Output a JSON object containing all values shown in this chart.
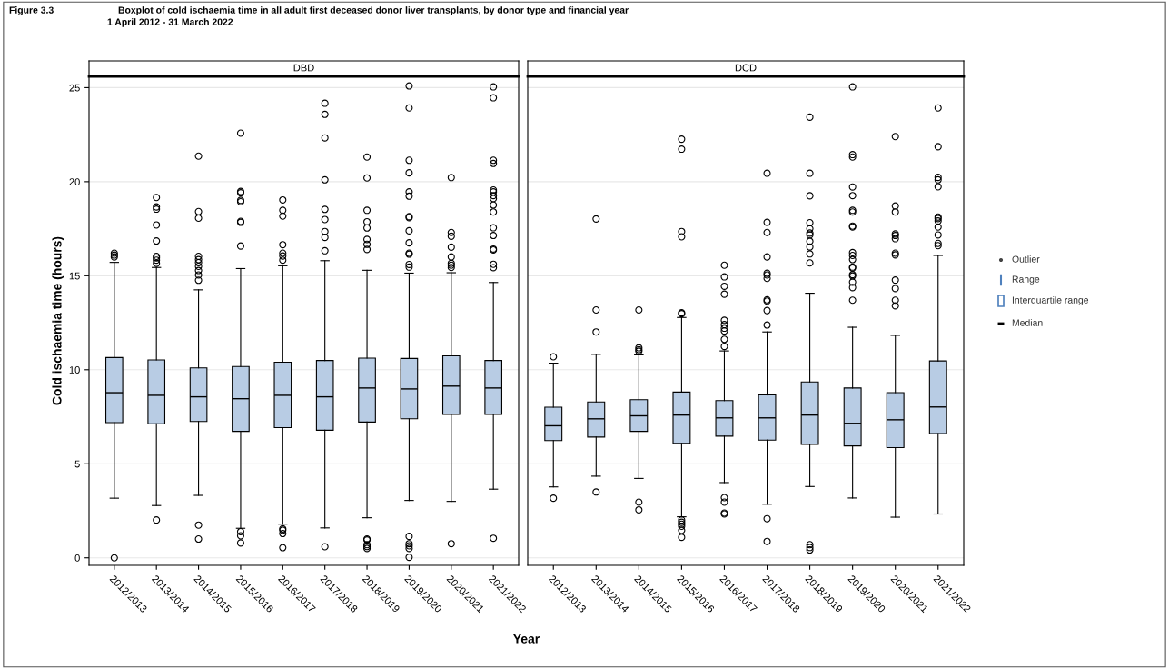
{
  "chart_data": [
    {
      "type": "box",
      "title": "DBD",
      "ylabel": "Cold ischaemia time (hours)",
      "xlabel": "Year",
      "annotations": [
        "Figure 3.3",
        "Boxplot of cold ischaemia time in all adult first deceased donor liver transplants, by donor type and financial year",
        "1 April 2012 - 31 March 2022"
      ],
      "categories": [
        "2012/2013",
        "2013/2014",
        "2014/2015",
        "2015/2016",
        "2016/2017",
        "2017/2018",
        "2018/2019",
        "2019/2020",
        "2020/2021",
        "2021/2022"
      ],
      "color": "#b8cce4",
      "ylim": [
        -0.4,
        25.6
      ],
      "yticks": [
        0,
        5,
        10,
        15,
        20,
        25
      ],
      "grid": "y",
      "boxes": [
        {
          "low": 3.17,
          "q1": 7.19,
          "median": 8.78,
          "q3": 10.65,
          "high": 15.71,
          "outliers": [
            0,
            16.0,
            16.1,
            16.2
          ]
        },
        {
          "low": 2.78,
          "q1": 7.12,
          "median": 8.64,
          "q3": 10.52,
          "high": 15.44,
          "outliers": [
            2.01,
            15.66,
            15.83,
            15.95,
            16.03,
            16.85,
            17.7,
            18.54,
            18.66,
            19.16
          ]
        },
        {
          "low": 3.32,
          "q1": 7.25,
          "median": 8.56,
          "q3": 10.1,
          "high": 14.25,
          "outliers": [
            1.0,
            1.74,
            14.76,
            15.04,
            15.28,
            15.5,
            15.7,
            15.86,
            16.03,
            18.06,
            18.41,
            21.36
          ]
        },
        {
          "low": 1.57,
          "q1": 6.72,
          "median": 8.46,
          "q3": 10.17,
          "high": 15.38,
          "outliers": [
            0.79,
            1.17,
            1.39,
            16.58,
            17.84,
            17.89,
            18.93,
            19.01,
            19.41,
            19.48,
            22.58
          ]
        },
        {
          "low": 1.79,
          "q1": 6.92,
          "median": 8.64,
          "q3": 10.4,
          "high": 15.53,
          "outliers": [
            0.54,
            1.29,
            1.47,
            1.54,
            15.83,
            16.05,
            16.2,
            16.65,
            18.17,
            18.48,
            19.03
          ]
        },
        {
          "low": 1.59,
          "q1": 6.78,
          "median": 8.56,
          "q3": 10.49,
          "high": 15.8,
          "outliers": [
            0.59,
            16.33,
            17.04,
            17.35,
            17.99,
            18.53,
            20.1,
            22.33,
            23.58,
            24.17
          ]
        },
        {
          "low": 2.13,
          "q1": 7.22,
          "median": 9.03,
          "q3": 10.62,
          "high": 15.29,
          "outliers": [
            0.5,
            0.6,
            0.7,
            0.95,
            1.0,
            16.4,
            16.67,
            16.93,
            17.54,
            17.87,
            18.48,
            20.2,
            21.31
          ]
        },
        {
          "low": 3.05,
          "q1": 7.39,
          "median": 8.98,
          "q3": 10.6,
          "high": 15.14,
          "outliers": [
            0.03,
            0.5,
            0.64,
            0.75,
            1.14,
            15.46,
            15.6,
            16.15,
            16.2,
            16.75,
            17.39,
            18.09,
            18.14,
            19.23,
            19.46,
            20.47,
            21.14,
            23.92,
            25.09
          ]
        },
        {
          "low": 3.0,
          "q1": 7.62,
          "median": 9.13,
          "q3": 10.74,
          "high": 15.16,
          "outliers": [
            0.75,
            15.44,
            15.56,
            15.66,
            16.0,
            16.52,
            17.1,
            17.3,
            20.22
          ]
        },
        {
          "low": 3.65,
          "q1": 7.62,
          "median": 9.03,
          "q3": 10.49,
          "high": 14.64,
          "outliers": [
            1.04,
            15.43,
            15.61,
            16.37,
            16.42,
            17.14,
            17.55,
            18.39,
            18.76,
            19.1,
            19.26,
            19.46,
            19.56,
            20.97,
            21.14,
            24.46,
            25.04
          ]
        }
      ]
    },
    {
      "type": "box",
      "title": "DCD",
      "tick_labels": "x",
      "annotations": [
        "Outlier",
        "Range",
        "Interquartile range",
        "Median"
      ],
      "categories": [
        "2012/2013",
        "2013/2014",
        "2014/2015",
        "2015/2016",
        "2016/2017",
        "2017/2018",
        "2018/2019",
        "2019/2020",
        "2020/2021",
        "2021/2022"
      ],
      "color": "#b8cce4",
      "ylim": [
        -0.4,
        25.6
      ],
      "yticks": [
        0,
        5,
        10,
        15,
        20,
        25
      ],
      "grid": "y",
      "boxes": [
        {
          "low": 3.77,
          "q1": 6.23,
          "median": 7.02,
          "q3": 8.01,
          "high": 10.35,
          "outliers": [
            3.17,
            10.69
          ]
        },
        {
          "low": 4.34,
          "q1": 6.42,
          "median": 7.39,
          "q3": 8.29,
          "high": 10.82,
          "outliers": [
            3.5,
            12.01,
            13.18,
            18.02
          ]
        },
        {
          "low": 4.22,
          "q1": 6.72,
          "median": 7.55,
          "q3": 8.41,
          "high": 10.79,
          "outliers": [
            2.55,
            2.96,
            10.99,
            11.07,
            11.17,
            13.18
          ]
        },
        {
          "low": 2.18,
          "q1": 6.08,
          "median": 7.59,
          "q3": 8.81,
          "high": 12.78,
          "outliers": [
            1.09,
            1.46,
            1.68,
            1.79,
            1.89,
            2.01,
            12.98,
            13.03,
            17.07,
            17.35,
            21.73,
            22.26
          ]
        },
        {
          "low": 4.0,
          "q1": 6.47,
          "median": 7.44,
          "q3": 8.36,
          "high": 11.0,
          "outliers": [
            2.33,
            2.38,
            2.96,
            3.2,
            11.24,
            11.62,
            12.06,
            12.21,
            12.4,
            12.63,
            14.02,
            14.44,
            14.94,
            15.56
          ]
        },
        {
          "low": 2.85,
          "q1": 6.26,
          "median": 7.44,
          "q3": 8.66,
          "high": 12.01,
          "outliers": [
            0.87,
            2.08,
            12.38,
            13.15,
            13.65,
            13.72,
            14.86,
            15.04,
            15.13,
            16.0,
            17.3,
            17.84,
            20.45
          ]
        },
        {
          "low": 3.79,
          "q1": 6.03,
          "median": 7.59,
          "q3": 9.35,
          "high": 14.07,
          "outliers": [
            0.42,
            0.55,
            0.7,
            15.68,
            16.16,
            16.53,
            16.83,
            17.17,
            17.27,
            17.5,
            17.82,
            19.25,
            20.45,
            23.43
          ]
        },
        {
          "low": 3.18,
          "q1": 5.95,
          "median": 7.15,
          "q3": 9.03,
          "high": 12.26,
          "outliers": [
            13.7,
            14.37,
            14.66,
            14.99,
            15.06,
            15.41,
            15.46,
            15.86,
            16.08,
            16.23,
            17.59,
            17.64,
            18.39,
            18.48,
            19.26,
            19.72,
            21.31,
            21.44,
            25.04
          ]
        },
        {
          "low": 2.16,
          "q1": 5.86,
          "median": 7.34,
          "q3": 8.78,
          "high": 11.83,
          "outliers": [
            13.4,
            13.7,
            14.32,
            14.77,
            16.11,
            16.2,
            16.97,
            17.14,
            17.22,
            18.39,
            18.71,
            22.4
          ]
        },
        {
          "low": 2.33,
          "q1": 6.6,
          "median": 8.02,
          "q3": 10.47,
          "high": 16.08,
          "outliers": [
            16.6,
            16.72,
            17.17,
            17.59,
            17.91,
            18.04,
            18.12,
            19.73,
            20.1,
            20.23,
            21.86,
            23.92
          ]
        }
      ]
    }
  ]
}
